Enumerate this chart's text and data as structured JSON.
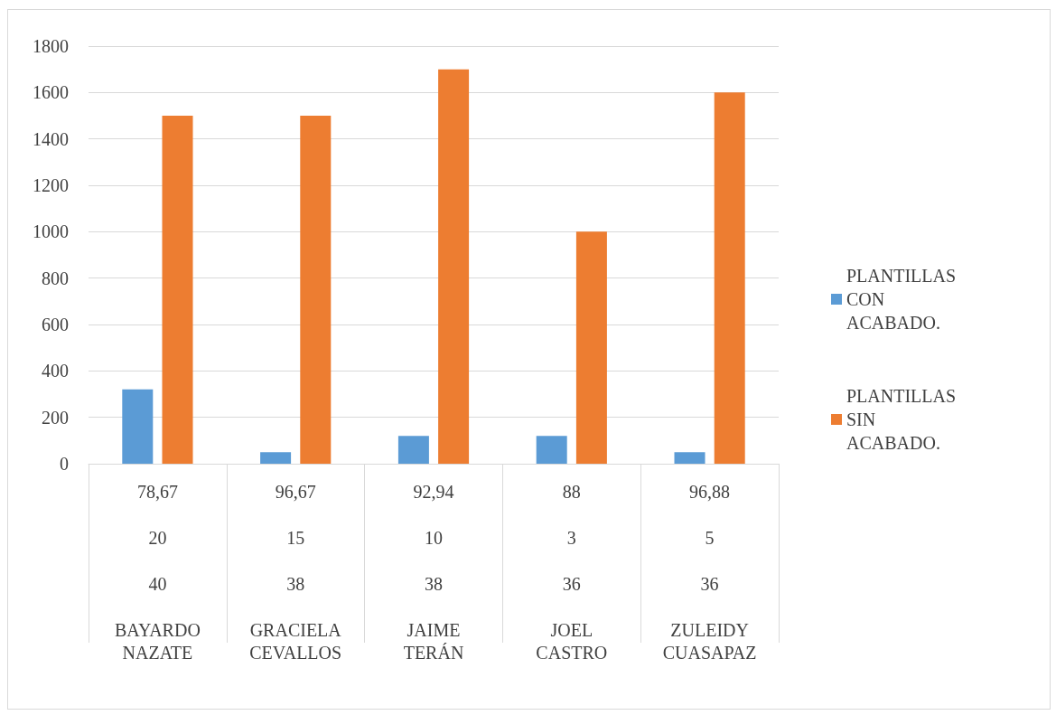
{
  "chart_data": {
    "type": "bar",
    "categories": [
      "78,67\n20\n40\nBAYARDO\nNAZATE",
      "96,67\n15\n38\nGRACIELA\nCEVALLOS",
      "92,94\n10\n38\nJAIME\nTERÁN",
      "88\n3\n36\nJOEL\nCASTRO",
      "96,88\n5\n36\nZULEIDY\nCUASAPAZ"
    ],
    "series": [
      {
        "name": "PLANTILLAS CON ACABADO.",
        "color": "#5b9bd5",
        "values": [
          320,
          50,
          120,
          120,
          50
        ]
      },
      {
        "name": "PLANTILLAS SIN ACABADO.",
        "color": "#ed7d31",
        "values": [
          1500,
          1500,
          1700,
          1000,
          1600
        ]
      }
    ],
    "ylim": [
      0,
      1800
    ],
    "yticks": [
      0,
      200,
      400,
      600,
      800,
      1000,
      1200,
      1400,
      1600,
      1800
    ],
    "grid": "y",
    "legend": "right"
  }
}
